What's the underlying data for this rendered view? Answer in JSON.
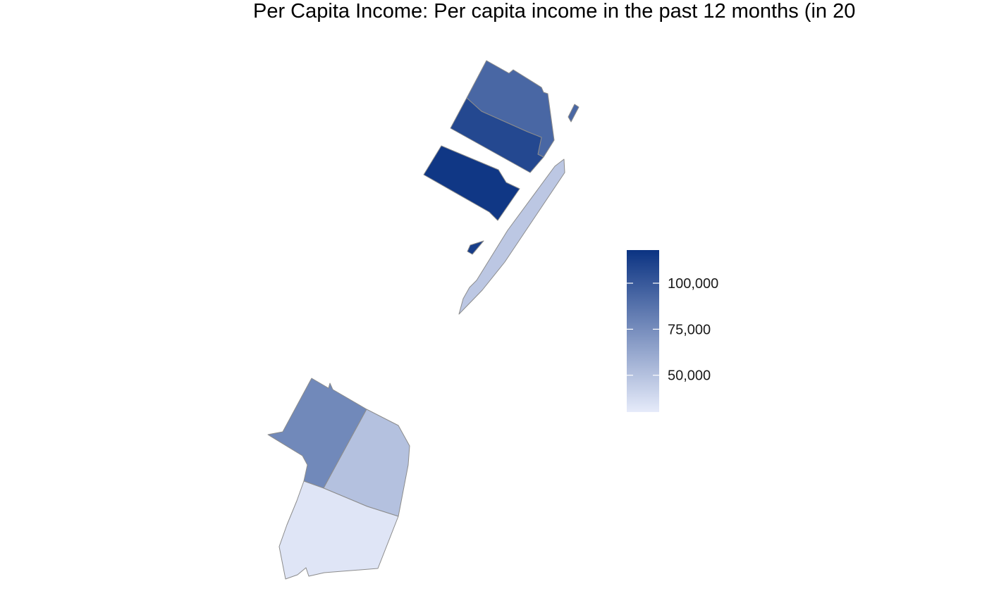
{
  "title": "Per Capita Income: Per capita income in the past 12 months (in 20",
  "chart_data": {
    "type": "choropleth",
    "title": "Per Capita Income: Per capita income in the past 12 months (in 20",
    "legend": {
      "placement": "right",
      "min": 30000,
      "max": 118000,
      "ticks": [
        {
          "value": 100000,
          "label": "100,000"
        },
        {
          "value": 75000,
          "label": "75,000"
        },
        {
          "value": 50000,
          "label": "50,000"
        }
      ],
      "color_low": "#e6ebfa",
      "color_high": "#0b3382"
    },
    "regions": [
      {
        "id": "north-top",
        "value": 93000
      },
      {
        "id": "north-middle",
        "value": 108000
      },
      {
        "id": "north-bottom",
        "value": 116000
      },
      {
        "id": "north-tiny-east",
        "value": 93000
      },
      {
        "id": "north-tiny-west",
        "value": 113000
      },
      {
        "id": "north-strip",
        "value": 47000
      },
      {
        "id": "south-northwest",
        "value": 77000
      },
      {
        "id": "south-northeast",
        "value": 50000
      },
      {
        "id": "south-south",
        "value": 33000
      }
    ]
  }
}
